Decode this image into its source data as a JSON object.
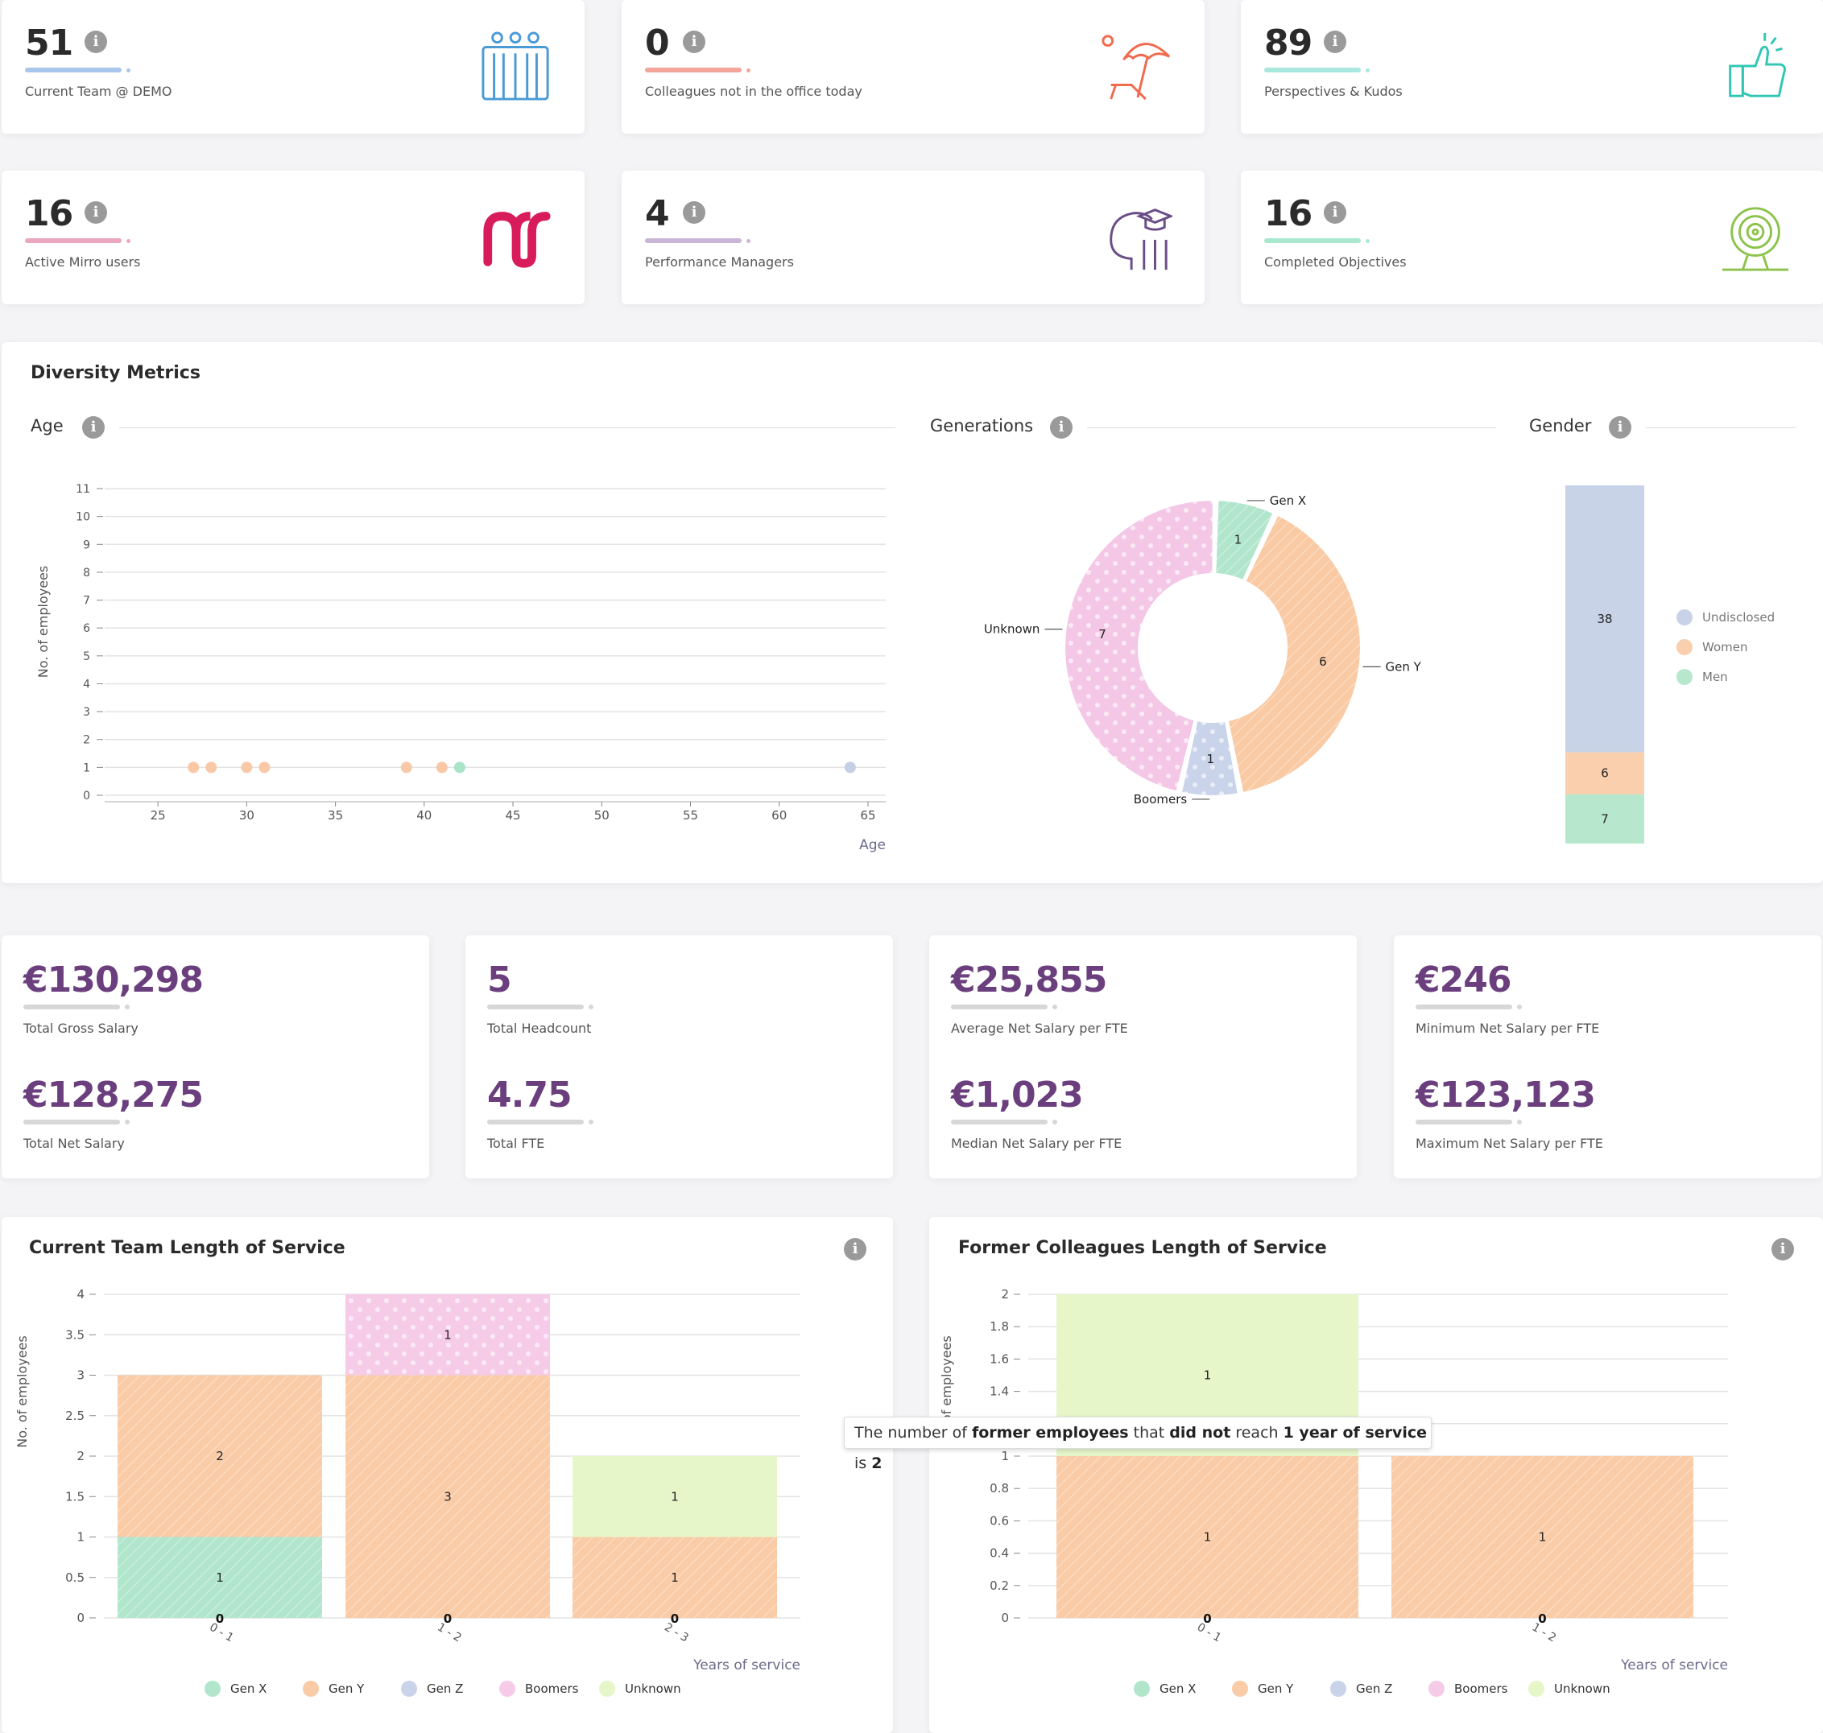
{
  "kpis": [
    {
      "value": "51",
      "label": "Current Team @ DEMO",
      "accent": "#a9c6ec",
      "icon": "team-icon"
    },
    {
      "value": "0",
      "label": "Colleagues not in the office today",
      "accent": "#f4a59a",
      "icon": "beach-umbrella-icon"
    },
    {
      "value": "89",
      "label": "Perspectives & Kudos",
      "accent": "#a9e8de",
      "icon": "thumbs-up-icon"
    },
    {
      "value": "16",
      "label": "Active Mirro users",
      "accent": "#eaa7bf",
      "icon": "mirro-logo-icon"
    },
    {
      "value": "4",
      "label": "Performance Managers",
      "accent": "#c9b6d6",
      "icon": "head-graduation-icon"
    },
    {
      "value": "16",
      "label": "Completed Objectives",
      "accent": "#a9e8cf",
      "icon": "target-icon"
    }
  ],
  "info_label": "i",
  "diversity": {
    "title": "Diversity Metrics",
    "age_title": "Age",
    "generations_title": "Generations",
    "gender_title": "Gender"
  },
  "age_chart": {
    "type": "scatter",
    "xlabel": "Age",
    "ylabel": "No. of employees",
    "xlim": [
      22,
      66
    ],
    "ylim": [
      0,
      11
    ],
    "xticks": [
      25,
      30,
      35,
      40,
      45,
      50,
      55,
      60,
      65
    ],
    "yticks": [
      0,
      1,
      2,
      3,
      4,
      5,
      6,
      7,
      8,
      9,
      10,
      11
    ],
    "points": [
      {
        "x": 27,
        "y": 1,
        "color": "#f9c8a6"
      },
      {
        "x": 28,
        "y": 1,
        "color": "#f9c8a6"
      },
      {
        "x": 30,
        "y": 1,
        "color": "#f9c8a6"
      },
      {
        "x": 31,
        "y": 1,
        "color": "#f9c8a6"
      },
      {
        "x": 39,
        "y": 1,
        "color": "#f9c8a6"
      },
      {
        "x": 41,
        "y": 1,
        "color": "#f9c8a6"
      },
      {
        "x": 42,
        "y": 1,
        "color": "#a9e3c8"
      },
      {
        "x": 64,
        "y": 1,
        "color": "#c5d0e6"
      }
    ]
  },
  "generations_chart": {
    "type": "pie",
    "slices": [
      {
        "label": "Gen X",
        "value": 1,
        "color": "#b1e6cd"
      },
      {
        "label": "Gen Y",
        "value": 6,
        "color": "#f9caa4"
      },
      {
        "label": "Boomers",
        "value": 1,
        "color": "#c9d3ea"
      },
      {
        "label": "Unknown",
        "value": 7,
        "color": "#f4c7e6"
      }
    ]
  },
  "gender_chart": {
    "type": "bar",
    "segments": [
      {
        "label": "Undisclosed",
        "value": 38,
        "color": "#c9d3e8"
      },
      {
        "label": "Women",
        "value": 6,
        "color": "#f9cfae"
      },
      {
        "label": "Men",
        "value": 7,
        "color": "#b7e8cd"
      }
    ]
  },
  "salary": [
    {
      "top_value": "€130,298",
      "top_label": "Total Gross Salary",
      "bottom_value": "€128,275",
      "bottom_label": "Total Net Salary"
    },
    {
      "top_value": "5",
      "top_label": "Total Headcount",
      "bottom_value": "4.75",
      "bottom_label": "Total FTE"
    },
    {
      "top_value": "€25,855",
      "top_label": "Average Net Salary per FTE",
      "bottom_value": "€1,023",
      "bottom_label": "Median Net Salary per FTE"
    },
    {
      "top_value": "€246",
      "top_label": "Minimum Net Salary per FTE",
      "bottom_value": "€123,123",
      "bottom_label": "Maximum Net Salary per FTE"
    }
  ],
  "current_service": {
    "title": "Current Team Length of Service",
    "chart_data": {
      "type": "bar",
      "stacked": true,
      "xlabel": "Years of service",
      "ylabel": "No. of employees",
      "ylim": [
        0,
        4
      ],
      "yticks": [
        "0",
        "0.5",
        "1",
        "1.5",
        "2",
        "2.5",
        "3",
        "3.5",
        "4"
      ],
      "categories": [
        "0 - 1",
        "1 - 2",
        "2 - 3"
      ],
      "series": [
        {
          "name": "Gen X",
          "color": "#b1e6cd",
          "values": [
            1,
            0,
            0
          ]
        },
        {
          "name": "Gen Y",
          "color": "#f9cba6",
          "values": [
            2,
            3,
            1
          ]
        },
        {
          "name": "Gen Z",
          "color": "#c9d3ea",
          "values": [
            0,
            0,
            0
          ]
        },
        {
          "name": "Boomers",
          "color": "#f6cbe8",
          "values": [
            0,
            1,
            0
          ]
        },
        {
          "name": "Unknown",
          "color": "#e6f6c9",
          "values": [
            0,
            0,
            1
          ]
        }
      ]
    }
  },
  "former_service": {
    "title": "Former Colleagues Length of Service",
    "chart_data": {
      "type": "bar",
      "stacked": true,
      "xlabel": "Years of service",
      "ylabel": "No. of employees",
      "ylim": [
        0,
        2
      ],
      "yticks": [
        "0",
        "0.2",
        "0.4",
        "0.6",
        "0.8",
        "1",
        "1.2",
        "1.4",
        "1.6",
        "1.8",
        "2"
      ],
      "categories": [
        "0 - 1",
        "1 - 2"
      ],
      "series": [
        {
          "name": "Gen X",
          "color": "#b1e6cd",
          "values": [
            0,
            0
          ]
        },
        {
          "name": "Gen Y",
          "color": "#f9cba6",
          "values": [
            1,
            1
          ]
        },
        {
          "name": "Gen Z",
          "color": "#c9d3ea",
          "values": [
            0,
            0
          ]
        },
        {
          "name": "Boomers",
          "color": "#f6cbe8",
          "values": [
            0,
            0
          ]
        },
        {
          "name": "Unknown",
          "color": "#e6f6c9",
          "values": [
            1,
            0
          ]
        }
      ]
    },
    "tooltip": {
      "t1": "The number of ",
      "b1": "former employees",
      "t2": " that ",
      "b2": "did not",
      "t3": " reach ",
      "b3": "1 year of service",
      "t4": " is ",
      "b4": "2"
    }
  }
}
